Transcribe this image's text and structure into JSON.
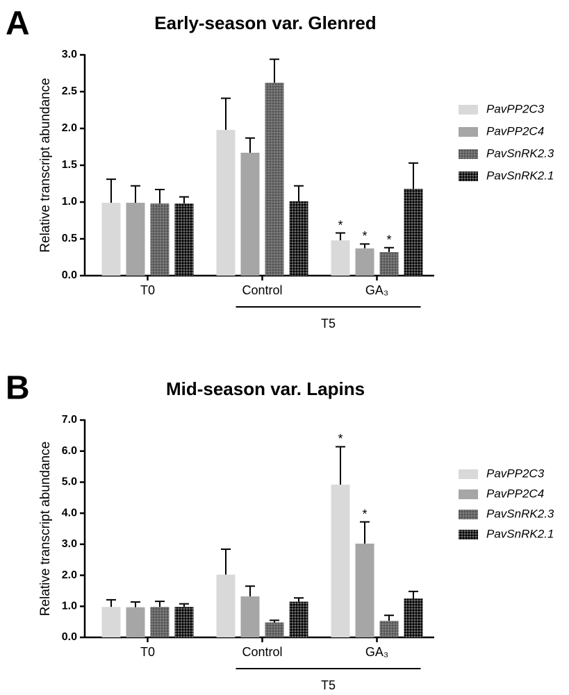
{
  "chart_data": [
    {
      "type": "bar",
      "panel_label": "A",
      "title": "Early-season var. Glenred",
      "y_label": "Relative transcript abundance",
      "categories": [
        "T0",
        "Control",
        "GA₃"
      ],
      "group": {
        "label": "T5",
        "from": "Control",
        "to": "GA₃"
      },
      "series": [
        {
          "name": "PavPP2C3",
          "color": "#d9d9d9",
          "pattern": "solid",
          "values": [
            0.99,
            1.98,
            0.48
          ],
          "errors": [
            0.32,
            0.43,
            0.1
          ],
          "markers": [
            null,
            null,
            "*"
          ]
        },
        {
          "name": "PavPP2C4",
          "color": "#a6a6a6",
          "pattern": "solid",
          "values": [
            0.99,
            1.67,
            0.37
          ],
          "errors": [
            0.23,
            0.2,
            0.06
          ],
          "markers": [
            null,
            null,
            "*"
          ]
        },
        {
          "name": "PavSnRK2.3",
          "color": "#6b6b6b",
          "pattern": "dots",
          "values": [
            0.98,
            2.62,
            0.32
          ],
          "errors": [
            0.19,
            0.32,
            0.06
          ],
          "markers": [
            null,
            null,
            "*"
          ]
        },
        {
          "name": "PavSnRK2.1",
          "color": "#2e2e2e",
          "pattern": "checks",
          "values": [
            0.98,
            1.01,
            1.18
          ],
          "errors": [
            0.09,
            0.21,
            0.35
          ],
          "markers": [
            null,
            null,
            null
          ]
        }
      ],
      "ylim": [
        0,
        3
      ],
      "yticks": [
        {
          "value": 0,
          "label": "0.0"
        },
        0.5,
        {
          "value": 1,
          "label": "1.0"
        },
        1.5,
        {
          "value": 2,
          "label": "2.0"
        },
        2.5,
        {
          "value": 3,
          "label": "3.0"
        }
      ],
      "legend": "right"
    },
    {
      "type": "bar",
      "panel_label": "B",
      "title": "Mid-season var. Lapins",
      "y_label": "Relative transcript abundance",
      "categories": [
        "T0",
        "Control",
        "GA₃"
      ],
      "group": {
        "label": "T5",
        "from": "Control",
        "to": "GA₃"
      },
      "series": [
        {
          "name": "PavPP2C3",
          "color": "#d9d9d9",
          "pattern": "solid",
          "values": [
            0.98,
            2.02,
            4.92
          ],
          "errors": [
            0.23,
            0.82,
            1.22
          ],
          "markers": [
            null,
            null,
            "*"
          ]
        },
        {
          "name": "PavPP2C4",
          "color": "#a6a6a6",
          "pattern": "solid",
          "values": [
            0.97,
            1.32,
            3.02
          ],
          "errors": [
            0.17,
            0.33,
            0.7
          ],
          "markers": [
            null,
            null,
            "*"
          ]
        },
        {
          "name": "PavSnRK2.3",
          "color": "#6b6b6b",
          "pattern": "dots",
          "values": [
            0.98,
            0.48,
            0.53
          ],
          "errors": [
            0.18,
            0.07,
            0.18
          ],
          "markers": [
            null,
            null,
            null
          ]
        },
        {
          "name": "PavSnRK2.1",
          "color": "#2e2e2e",
          "pattern": "checks",
          "values": [
            0.98,
            1.15,
            1.25
          ],
          "errors": [
            0.1,
            0.12,
            0.23
          ],
          "markers": [
            null,
            null,
            null
          ]
        }
      ],
      "ylim": [
        0,
        7
      ],
      "yticks": [
        {
          "value": 0,
          "label": "0.0"
        },
        {
          "value": 1,
          "label": "1.0"
        },
        {
          "value": 2,
          "label": "2.0"
        },
        {
          "value": 3,
          "label": "3.0"
        },
        {
          "value": 4,
          "label": "4.0"
        },
        {
          "value": 5,
          "label": "5.0"
        },
        {
          "value": 6,
          "label": "6.0"
        },
        {
          "value": 7,
          "label": "7.0"
        }
      ],
      "legend": "right"
    }
  ]
}
